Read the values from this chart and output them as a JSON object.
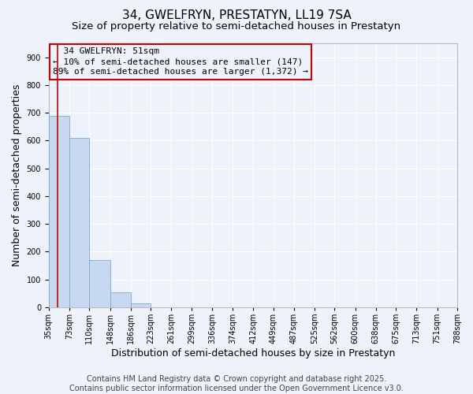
{
  "title": "34, GWELFRYN, PRESTATYN, LL19 7SA",
  "subtitle": "Size of property relative to semi-detached houses in Prestatyn",
  "xlabel": "Distribution of semi-detached houses by size in Prestatyn",
  "ylabel": "Number of semi-detached properties",
  "footer": "Contains HM Land Registry data © Crown copyright and database right 2025.\nContains public sector information licensed under the Open Government Licence v3.0.",
  "bins": [
    35,
    73,
    110,
    148,
    186,
    223,
    261,
    299,
    336,
    374,
    412,
    449,
    487,
    525,
    562,
    600,
    638,
    675,
    713,
    751,
    788
  ],
  "bar_heights": [
    690,
    610,
    170,
    55,
    13,
    0,
    0,
    0,
    0,
    0,
    0,
    0,
    0,
    0,
    0,
    0,
    0,
    0,
    0,
    0
  ],
  "bar_color": "#c6d9f1",
  "bar_edge_color": "#7aaadc",
  "property_size": 51,
  "property_label": "34 GWELFRYN: 51sqm",
  "pct_smaller": "10%",
  "pct_smaller_count": 147,
  "pct_larger": "89%",
  "pct_larger_count": "1,372",
  "vline_color": "#cc0000",
  "legend_edge_color": "#cc0000",
  "ylim": [
    0,
    950
  ],
  "yticks": [
    0,
    100,
    200,
    300,
    400,
    500,
    600,
    700,
    800,
    900
  ],
  "bg_color": "#eef2fb",
  "grid_color": "#ffffff",
  "title_fontsize": 11,
  "subtitle_fontsize": 9.5,
  "axis_label_fontsize": 9,
  "tick_fontsize": 7,
  "legend_fontsize": 8,
  "footer_fontsize": 7
}
